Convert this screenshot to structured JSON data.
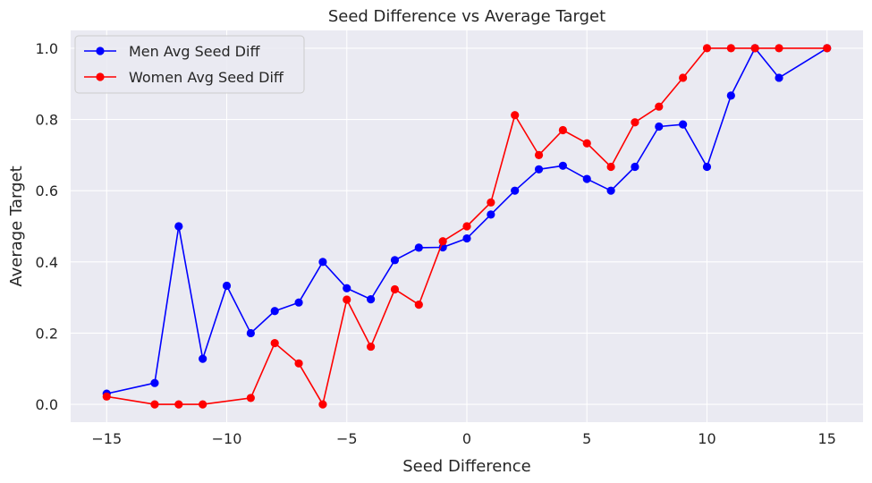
{
  "chart_data": {
    "type": "line",
    "title": "Seed Difference vs Average Target",
    "xlabel": "Seed Difference",
    "ylabel": "Average Target",
    "xlim": [
      -16.5,
      16.5
    ],
    "ylim": [
      -0.05,
      1.05
    ],
    "xticks": [
      -15,
      -10,
      -5,
      0,
      5,
      10,
      15
    ],
    "xtick_labels": [
      "−15",
      "−10",
      "−5",
      "0",
      "5",
      "10",
      "15"
    ],
    "yticks": [
      0.0,
      0.2,
      0.4,
      0.6,
      0.8,
      1.0
    ],
    "ytick_labels": [
      "0.0",
      "0.2",
      "0.4",
      "0.6",
      "0.8",
      "1.0"
    ],
    "grid": true,
    "legend_position": "top-left",
    "series": [
      {
        "name": "Men Avg Seed Diff",
        "color": "#0000ff",
        "x": [
          -15,
          -13,
          -12,
          -11,
          -10,
          -9,
          -8,
          -7,
          -6,
          -5,
          -4,
          -3,
          -2,
          -1,
          0,
          1,
          2,
          3,
          4,
          5,
          6,
          7,
          8,
          9,
          10,
          11,
          12,
          13,
          15
        ],
        "y": [
          0.03,
          0.06,
          0.5,
          0.128,
          0.333,
          0.2,
          0.262,
          0.286,
          0.4,
          0.326,
          0.295,
          0.405,
          0.44,
          0.441,
          0.466,
          0.533,
          0.6,
          0.66,
          0.67,
          0.633,
          0.6,
          0.667,
          0.78,
          0.786,
          0.667,
          0.867,
          1.0,
          0.917,
          1.0
        ]
      },
      {
        "name": "Women Avg Seed Diff",
        "color": "#ff0000",
        "x": [
          -15,
          -13,
          -12,
          -11,
          -9,
          -8,
          -7,
          -6,
          -5,
          -4,
          -3,
          -2,
          -1,
          0,
          1,
          2,
          3,
          4,
          5,
          6,
          7,
          8,
          9,
          10,
          11,
          12,
          13,
          15
        ],
        "y": [
          0.022,
          0.0,
          0.0,
          0.0,
          0.018,
          0.172,
          0.115,
          0.0,
          0.294,
          0.162,
          0.323,
          0.28,
          0.458,
          0.5,
          0.567,
          0.812,
          0.7,
          0.77,
          0.733,
          0.667,
          0.792,
          0.836,
          0.917,
          1.0,
          1.0,
          1.0,
          1.0,
          1.0
        ]
      }
    ]
  }
}
